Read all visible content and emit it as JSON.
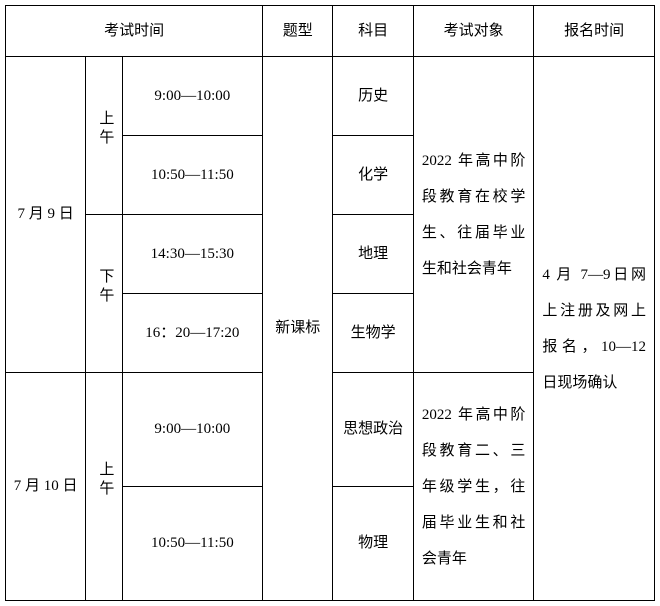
{
  "headers": {
    "exam_time": "考试时间",
    "question_type": "题型",
    "subject": "科目",
    "exam_target": "考试对象",
    "register_time": "报名时间"
  },
  "col_widths": {
    "date": 80,
    "ampm": 36,
    "time": 140,
    "qtype": 70,
    "subject": 80,
    "target": 120,
    "register": 120
  },
  "day1": {
    "date": "7 月 9 日",
    "am": "上午",
    "pm": "下午",
    "slot1": "9:00—10:00",
    "slot2": "10:50—11:50",
    "slot3": "14:30—15:30",
    "slot4": "16：20—17:20",
    "subj1": "历史",
    "subj2": "化学",
    "subj3": "地理",
    "subj4": "生物学"
  },
  "day2": {
    "date": "7 月 10 日",
    "am": "上午",
    "slot1": "9:00—10:00",
    "slot2": "10:50—11:50",
    "subj1": "思想政治",
    "subj2": "物理"
  },
  "qtype": "新课标",
  "target1": "2022 年高中阶段教育在校学生、往届毕业生和社会青年",
  "target2": "2022 年高中阶段教育二、三年级学生，往届毕业生和社会青年",
  "register": "4 月 7—9日网上注册及网上报名，10—12 日现场确认"
}
